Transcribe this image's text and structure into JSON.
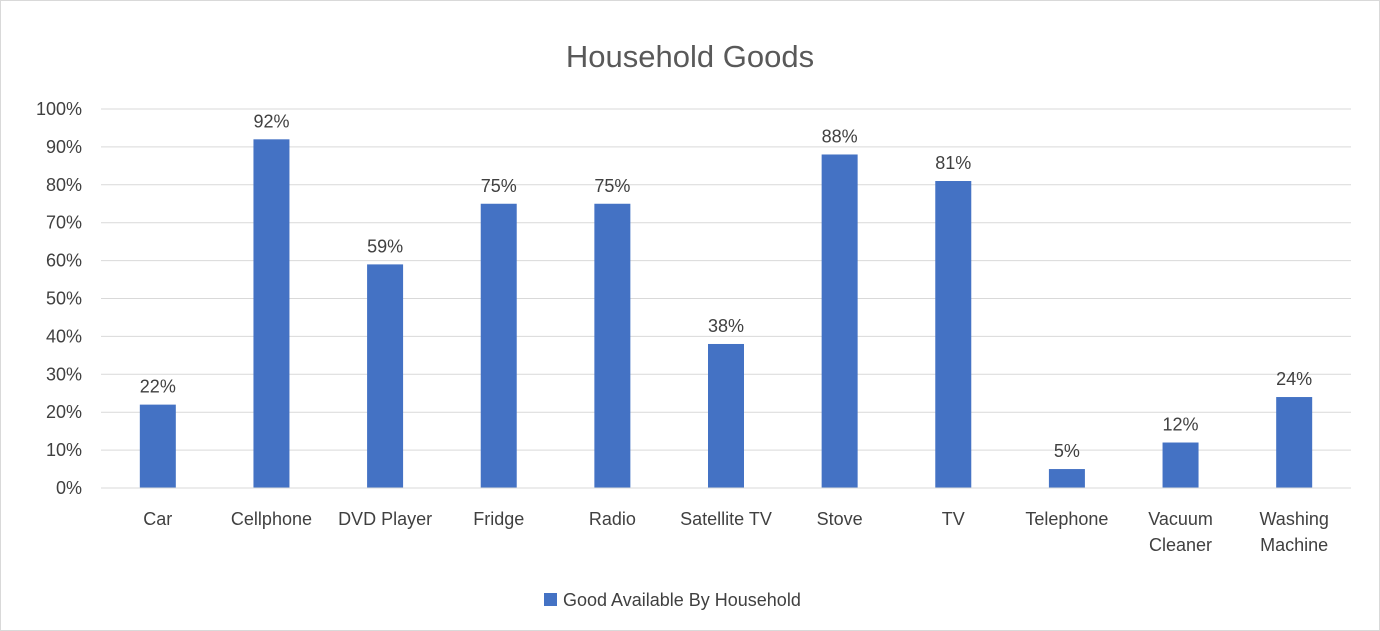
{
  "chart_data": {
    "type": "bar",
    "title": "Household Goods",
    "categories": [
      [
        "Car"
      ],
      [
        "Cellphone"
      ],
      [
        "DVD Player"
      ],
      [
        "Fridge"
      ],
      [
        "Radio"
      ],
      [
        "Satellite TV"
      ],
      [
        "Stove"
      ],
      [
        "TV"
      ],
      [
        "Telephone"
      ],
      [
        "Vacuum",
        "Cleaner"
      ],
      [
        "Washing",
        "Machine"
      ]
    ],
    "series": [
      {
        "name": "Good Available By Household",
        "values": [
          22,
          92,
          59,
          75,
          75,
          38,
          88,
          81,
          5,
          12,
          24
        ],
        "labels": [
          "22%",
          "92%",
          "59%",
          "75%",
          "75%",
          "38%",
          "88%",
          "81%",
          "5%",
          "12%",
          "24%"
        ]
      }
    ],
    "ylim": [
      0,
      100
    ],
    "yticks": [
      0,
      10,
      20,
      30,
      40,
      50,
      60,
      70,
      80,
      90,
      100
    ],
    "ytick_labels": [
      "0%",
      "10%",
      "20%",
      "30%",
      "40%",
      "50%",
      "60%",
      "70%",
      "80%",
      "90%",
      "100%"
    ],
    "xlabel": "",
    "ylabel": "",
    "grid": true,
    "legend_position": "bottom",
    "colors": {
      "bar": "#4472c4",
      "grid": "#d9d9d9",
      "text": "#404040",
      "title": "#595959"
    }
  }
}
